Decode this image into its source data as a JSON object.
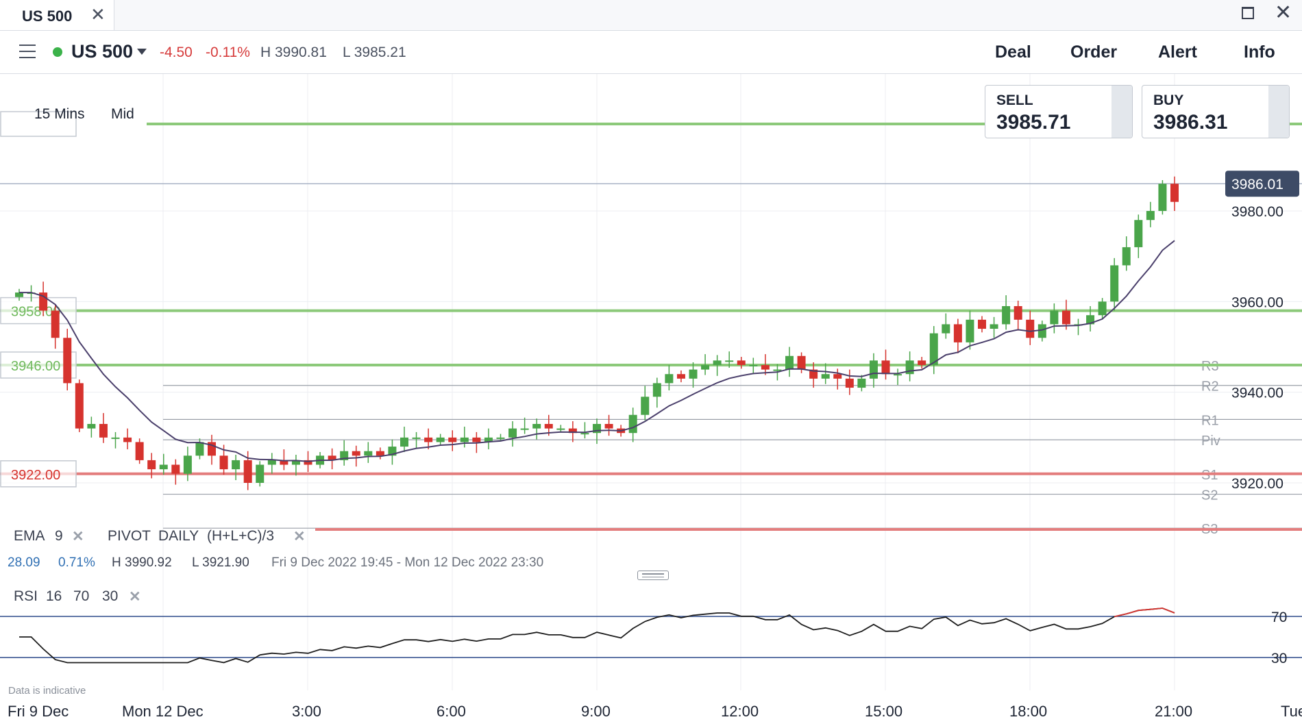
{
  "window": {
    "tab_title": "US 500",
    "tab_close": "✕",
    "close_glyph": "✕"
  },
  "header": {
    "instrument": "US 500",
    "change": "-4.50",
    "change_pct": "-0.11%",
    "high": "H 3990.81",
    "low": "L 3985.21",
    "nav": [
      "Deal",
      "Order",
      "Alert",
      "Info"
    ]
  },
  "quote": {
    "sell_label": "SELL",
    "sell": "3985.71",
    "buy_label": "BUY",
    "buy": "3986.31"
  },
  "timeframe": "15 Mins",
  "price_type": "Mid",
  "legend": {
    "ema": "EMA",
    "ema_period": "9",
    "pivot": "PIVOT",
    "pivot_period": "DAILY",
    "pivot_formula": "(H+L+C)/3",
    "stat1": "28.09",
    "stat2": "0.71%",
    "high": "H 3990.92",
    "low": "L 3921.90",
    "range": "Fri 9 Dec 2022 19:45 - Mon 12 Dec 2022 23:30",
    "close_glyph": "✕"
  },
  "rsi_legend": {
    "label": "RSI",
    "p1": "16",
    "p2": "70",
    "p3": "30"
  },
  "disclaimer": "Data is indicative",
  "x_labels": [
    "Fri 9 Dec",
    "Mon 12 Dec",
    "3:00",
    "6:00",
    "9:00",
    "12:00",
    "15:00",
    "18:00",
    "21:00",
    "Tue"
  ],
  "colors": {
    "up": "#4aa54a",
    "down": "#d6332e",
    "ema": "#4a3f6b",
    "green_line": "#8cc97a",
    "red_line": "#e37d7d",
    "current": "#3d4b66"
  },
  "chart_data": {
    "type": "candlestick",
    "interval": "15 Mins",
    "y_ticks": [
      "3980.00",
      "3960.00",
      "3940.00",
      "3920.00"
    ],
    "current_price": "3986.01",
    "alert_levels": [
      "3958.00",
      "3946.00",
      "3922.00",
      "3910.00",
      "3990.00"
    ],
    "pivot_labels": [
      "R3",
      "R2",
      "R1",
      "Piv",
      "S1",
      "S2",
      "S3"
    ],
    "pivot_values": [
      3946,
      3941.5,
      3934,
      3929.5,
      3922,
      3917.5,
      3910
    ],
    "candles_close": [
      3962,
      3962,
      3958,
      3952,
      3942,
      3932,
      3933,
      3930,
      3930,
      3929,
      3925,
      3923,
      3924,
      3922,
      3926,
      3929,
      3926,
      3923,
      3925,
      3920,
      3924,
      3925,
      3924,
      3925,
      3924,
      3926,
      3925,
      3927,
      3926,
      3927,
      3926,
      3928,
      3930,
      3930,
      3929,
      3930,
      3929,
      3930,
      3929,
      3930,
      3930,
      3932,
      3932,
      3933,
      3932,
      3932,
      3931,
      3931,
      3933,
      3932,
      3931,
      3935,
      3939,
      3942,
      3944,
      3943,
      3945,
      3946,
      3947,
      3947,
      3946,
      3946,
      3945,
      3945,
      3948,
      3945,
      3943,
      3944,
      3943,
      3941,
      3943,
      3947,
      3944,
      3944,
      3947,
      3946,
      3953,
      3955,
      3951,
      3956,
      3954,
      3955,
      3959,
      3956,
      3952,
      3955,
      3958,
      3955,
      3955,
      3957,
      3960,
      3968,
      3972,
      3978,
      3980,
      3986,
      3982
    ],
    "ema_last": 3976,
    "rsi_levels": [
      70,
      30
    ]
  }
}
